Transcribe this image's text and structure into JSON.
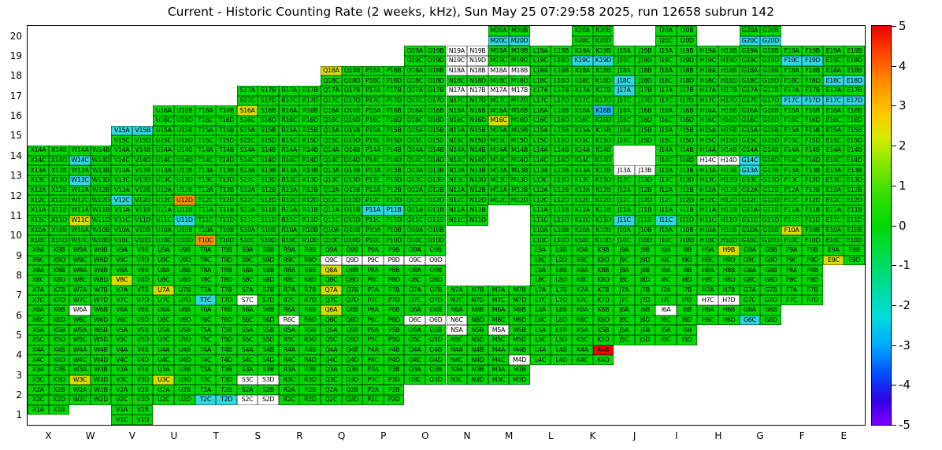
{
  "title": "Current - Historic Counting Rate (2 weeks, kHz), Sun May 25 07:29:58 2025, run 12658 subrun 142",
  "chart_data": {
    "type": "heatmap",
    "title": "Current - Historic Counting Rate (2 weeks, kHz), Sun May 25 07:29:58 2025, run 12658 subrun 142",
    "x_categories": [
      "X",
      "W",
      "V",
      "U",
      "T",
      "S",
      "R",
      "Q",
      "P",
      "O",
      "N",
      "M",
      "L",
      "K",
      "J",
      "I",
      "H",
      "G",
      "F",
      "E"
    ],
    "y_categories": [
      "20",
      "19",
      "18",
      "17",
      "16",
      "15",
      "14",
      "13",
      "12",
      "11",
      "10",
      "9",
      "8",
      "7",
      "6",
      "5",
      "4",
      "3",
      "2",
      "1"
    ],
    "quadrants": [
      "A",
      "B",
      "C",
      "D"
    ],
    "palette": {
      "g": "#00D900",
      "y": "#D8DC00",
      "o": "#FF9000",
      "r": "#FF0000",
      "c": "#2FD8E0",
      "b": "#28B4F0",
      "w": "#FFFFFF"
    },
    "value_key_kHz_deviation": {
      "g": 0,
      "y": 1.5,
      "o": 3.5,
      "r": 5,
      "c": -2.5,
      "b": -3,
      "w": null
    },
    "colorbar": {
      "min": -5,
      "max": 5,
      "ticks": [
        "5",
        "4",
        "3",
        "2",
        "1",
        "0",
        "-1",
        "-2",
        "-3",
        "-4",
        "-5"
      ],
      "gradient": [
        {
          "pos": 0.0,
          "color": "#EE0000"
        },
        {
          "pos": 0.06,
          "color": "#FF3C00"
        },
        {
          "pos": 0.14,
          "color": "#FF8C00"
        },
        {
          "pos": 0.22,
          "color": "#FFC800"
        },
        {
          "pos": 0.28,
          "color": "#D7EC00"
        },
        {
          "pos": 0.34,
          "color": "#8CE800"
        },
        {
          "pos": 0.42,
          "color": "#37E000"
        },
        {
          "pos": 0.5,
          "color": "#00D800"
        },
        {
          "pos": 0.58,
          "color": "#00DC50"
        },
        {
          "pos": 0.66,
          "color": "#00DCA0"
        },
        {
          "pos": 0.73,
          "color": "#00DCDC"
        },
        {
          "pos": 0.8,
          "color": "#00AAFF"
        },
        {
          "pos": 0.87,
          "color": "#0050FF"
        },
        {
          "pos": 0.94,
          "color": "#3200E6"
        },
        {
          "pos": 1.0,
          "color": "#8200FF"
        }
      ]
    },
    "cells": {
      "20": {
        "M": "ggcc",
        "K": "gggg",
        "I": "gggg",
        "G": "ggcc"
      },
      "19": {
        "O": "gggg",
        "N": "wwww",
        "M": "gggg",
        "L": "gggg",
        "K": "ggcc",
        "J": "gggg",
        "I": "gggg",
        "H": "gggg",
        "G": "gggg",
        "F": "ggcc",
        "E": "gggg"
      },
      "18": {
        "Q": "yggg",
        "P": "gggg",
        "O": "gggg",
        "N": "wwgg",
        "M": "wwgg",
        "L": "gggg",
        "K": "gggg",
        "J": "ggcg",
        "I": "gggg",
        "H": "gggg",
        "G": "gggg",
        "F": "gggg",
        "E": "ggcc"
      },
      "17": {
        "S": "gggg",
        "R": "gggg",
        "Q": "gggg",
        "P": "gggg",
        "O": "gggg",
        "N": "wwgg",
        "M": "wwgg",
        "L": "gggg",
        "K": "gggg",
        "J": "cggg",
        "I": "gggg",
        "H": "gggg",
        "G": "gggg",
        "F": "ggcc",
        "E": "ggcc"
      },
      "16": {
        "U": "gggg",
        "T": "gggg",
        "S": "yggg",
        "R": "gggg",
        "Q": "gggg",
        "P": "gggg",
        "O": "gggg",
        "N": "gggg",
        "M": "ggyg",
        "L": "gggg",
        "K": "gbgg",
        "J": "gggg",
        "I": "gggg",
        "H": "gggg",
        "G": "gggg",
        "F": "gggg",
        "E": "gggg"
      },
      "15": {
        "V": "ccgg",
        "U": "gggg",
        "T": "gggg",
        "S": "gggg",
        "R": "gggg",
        "Q": "gggg",
        "P": "gggg",
        "O": "gggg",
        "N": "gggg",
        "M": "gggg",
        "L": "gggg",
        "K": "gggg",
        "J": "gggg",
        "I": "gggg",
        "H": "gggg",
        "G": "gggg",
        "F": "gggg",
        "E": "gggg"
      },
      "14": {
        "X": "gggg",
        "W": "ggcg",
        "V": "gggg",
        "U": "gggg",
        "T": "gggg",
        "S": "gggg",
        "R": "gggg",
        "Q": "gggg",
        "P": "gggg",
        "O": "gggg",
        "N": "gggg",
        "M": "gggg",
        "L": "gggg",
        "K": "gggg",
        "I": "gggg",
        "H": "ggww",
        "G": "ggcg",
        "F": "gggg",
        "E": "gggg"
      },
      "13": {
        "X": "gggg",
        "W": "ggcg",
        "V": "gggg",
        "U": "gggg",
        "T": "gggg",
        "S": "gggg",
        "R": "gggg",
        "Q": "gggg",
        "P": "gggg",
        "O": "gggg",
        "N": "gggg",
        "M": "gggg",
        "L": "gggg",
        "K": "gggg",
        "J": "wwgg",
        "I": "gggg",
        "H": "gggg",
        "G": "cggg",
        "F": "gggg",
        "E": "gggg"
      },
      "12": {
        "X": "gggg",
        "W": "gggg",
        "V": "ggcg",
        "U": "gggo",
        "T": "gggg",
        "S": "gggg",
        "R": "gggg",
        "Q": "gggg",
        "P": "gggg",
        "O": "gggg",
        "N": "gggg",
        "M": "gggg",
        "L": "gggg",
        "K": "gggg",
        "J": "gggg",
        "I": "gggg",
        "H": "gggg",
        "G": "gggg",
        "F": "gggg",
        "E": "gggg"
      },
      "11": {
        "X": "gggg",
        "W": "ggyg",
        "V": "gggg",
        "U": "gggc",
        "T": "gggg",
        "S": "gggg",
        "R": "gggg",
        "Q": "gggg",
        "P": "ccgg",
        "O": "gggg",
        "N": "gggg",
        "L": "gggg",
        "K": "gggg",
        "J": "ggcg",
        "I": "ggcg",
        "H": "gggg",
        "G": "gggg",
        "F": "gggg",
        "E": "gggg"
      },
      "10": {
        "X": "gggg",
        "W": "gggg",
        "V": "gggg",
        "U": "gggg",
        "T": "ggog",
        "S": "gggg",
        "R": "gggg",
        "Q": "gggg",
        "P": "gggg",
        "O": "gggg",
        "L": "gggg",
        "K": "gggg",
        "J": "gggg",
        "I": "gggg",
        "H": "gggg",
        "G": "gggg",
        "F": "yggg",
        "E": "gggg"
      },
      "9": {
        "X": "gggg",
        "W": "gggg",
        "V": "gggg",
        "U": "gggg",
        "T": "gggg",
        "S": "gggg",
        "R": "gggg",
        "Q": "ggww",
        "P": "ggww",
        "O": "ggww",
        "L": "gggg",
        "K": "gggg",
        "J": "gggg",
        "I": "gggg",
        "H": "gygg",
        "G": "gggg",
        "F": "gggg",
        "E": "ggyg"
      },
      "8": {
        "X": "gggg",
        "W": "gggg",
        "V": "ggyg",
        "U": "gggg",
        "T": "gggg",
        "S": "gggg",
        "R": "gggg",
        "Q": "yggg",
        "P": "gggg",
        "O": "gggg",
        "L": "gggg",
        "K": "gggg",
        "J": "gggg",
        "I": "gggg",
        "H": "gggg",
        "G": "gggg",
        "F": "gggg"
      },
      "7": {
        "X": "gggg",
        "W": "gggg",
        "V": "gggg",
        "U": "yggg",
        "T": "ggcg",
        "S": "ggwg",
        "R": "gggg",
        "Q": "yggg",
        "P": "gggg",
        "O": "gggg",
        "N": "gggg",
        "M": "gggg",
        "L": "gggg",
        "K": "gggg",
        "J": "gggg",
        "I": "gggg",
        "H": "ggww",
        "G": "gggg",
        "F": "gggg"
      },
      "6": {
        "X": "gggg",
        "W": "wggg",
        "V": "gggg",
        "U": "gggg",
        "T": "gggg",
        "S": "gggg",
        "R": "ggwg",
        "Q": "yggg",
        "P": "gggg",
        "O": "ggww",
        "N": "ggwg",
        "M": "gggg",
        "L": "gggg",
        "K": "gggg",
        "J": "gggg",
        "I": "wggg",
        "H": "gggg",
        "G": "ggcg"
      },
      "5": {
        "X": "gggg",
        "W": "gggg",
        "V": "gggg",
        "U": "gggg",
        "T": "gggg",
        "S": "gggg",
        "R": "gggg",
        "Q": "gggg",
        "P": "gggg",
        "O": "gggg",
        "N": "wggg",
        "M": "wggg",
        "L": "gggg",
        "K": "gggg",
        "J": "gggg",
        "I": "gggg"
      },
      "4": {
        "X": "gggg",
        "W": "gggg",
        "V": "gggg",
        "U": "gggg",
        "T": "gggg",
        "S": "gggg",
        "R": "gggg",
        "Q": "gggg",
        "P": "gggg",
        "O": "gggg",
        "N": "gggg",
        "M": "gggw",
        "L": "gggg",
        "K": "grgg"
      },
      "3": {
        "X": "gggg",
        "W": "ggyg",
        "V": "gggg",
        "U": "ggyg",
        "T": "gggg",
        "S": "ggww",
        "R": "gggg",
        "Q": "gggg",
        "P": "gggg",
        "O": "gggg",
        "N": "gggg",
        "M": "gggg"
      },
      "2": {
        "X": "gggg",
        "W": "gggg",
        "V": "gggg",
        "U": "gggg",
        "T": "ggcc",
        "S": "ggww",
        "R": "gggg",
        "Q": "gggg",
        "P": "gggg"
      },
      "1": {
        "X": "gg--",
        "V": "gggg"
      }
    }
  }
}
